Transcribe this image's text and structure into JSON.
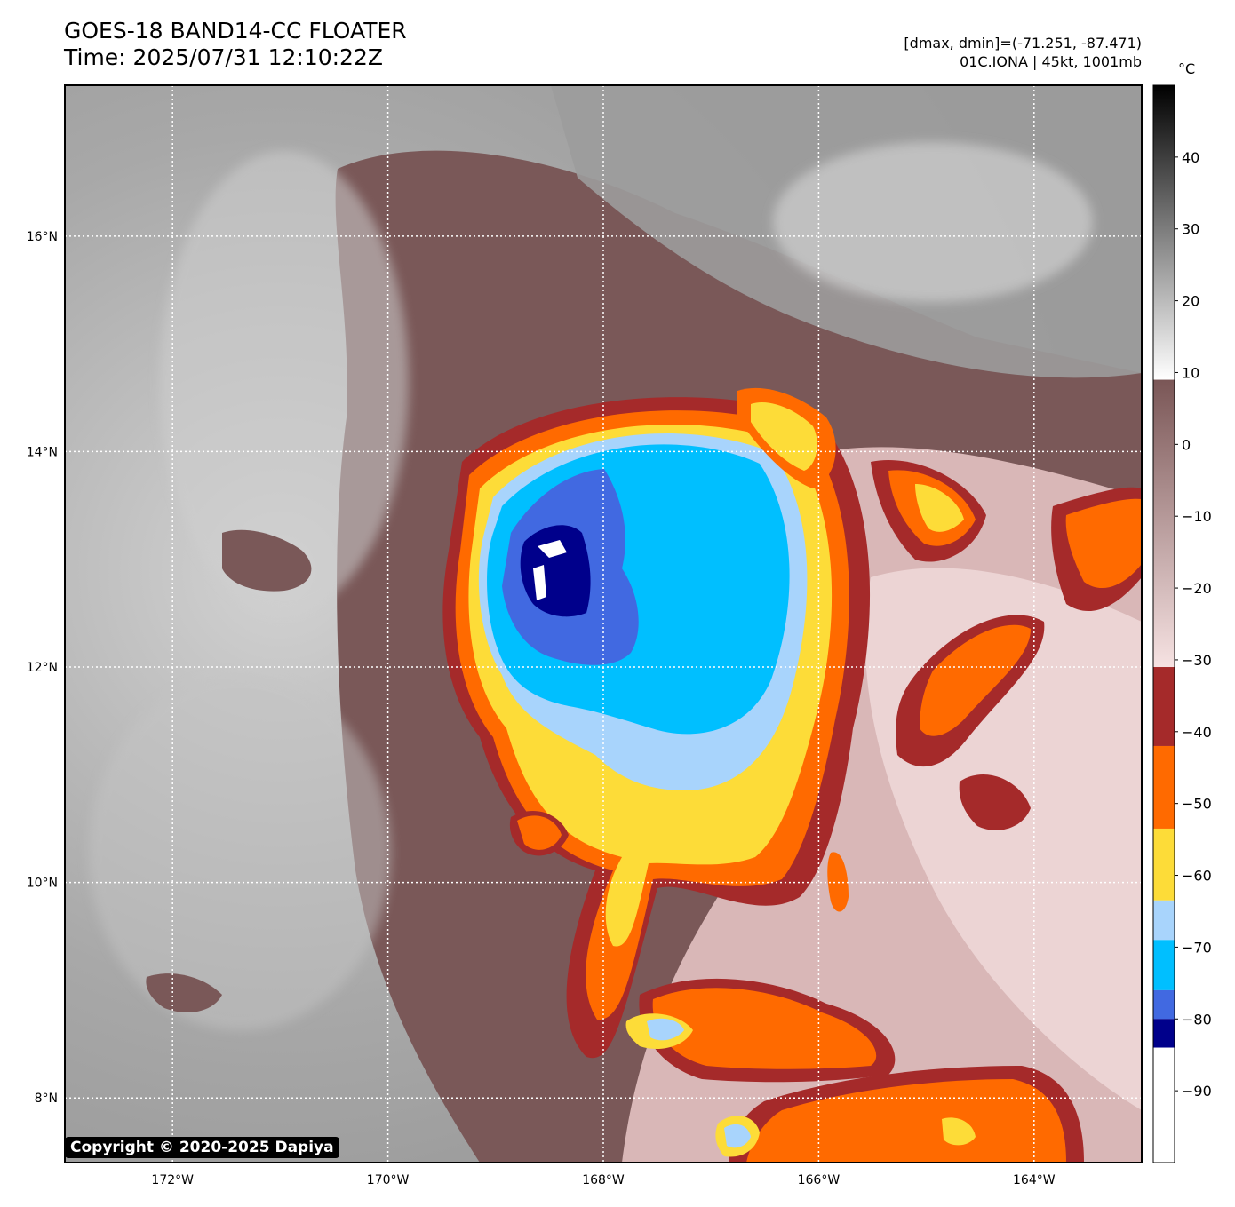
{
  "header": {
    "title_line1": "GOES-18 BAND14-CC FLOATER",
    "title_line2": "Time: 2025/07/31 12:10:22Z",
    "range_text": "[dmax, dmin]=(-71.251, -87.471)",
    "storm_text": "01C.IONA | 45kt, 1001mb"
  },
  "map": {
    "lat_labels": [
      "16°N",
      "14°N",
      "12°N",
      "10°N",
      "8°N"
    ],
    "lon_labels": [
      "172°W",
      "170°W",
      "168°W",
      "166°W",
      "164°W"
    ],
    "lat_values": [
      16,
      14,
      12,
      10,
      8
    ],
    "lon_values": [
      -172,
      -170,
      -168,
      -166,
      -164
    ],
    "lat_range": [
      7.4,
      17.4
    ],
    "lon_range": [
      -173.0,
      -163.0
    ],
    "storm_center": {
      "lat": 12.3,
      "lon": -167.9
    },
    "copyright": "Copyright © 2020-2025 Dapiya"
  },
  "colorbar": {
    "unit": "°C",
    "tick_labels": [
      "40",
      "30",
      "20",
      "10",
      "0",
      "−10",
      "−20",
      "−30",
      "−40",
      "−50",
      "−60",
      "−70",
      "−80",
      "−90"
    ],
    "tick_values": [
      40,
      30,
      20,
      10,
      0,
      -10,
      -20,
      -30,
      -40,
      -50,
      -60,
      -70,
      -80,
      -90
    ],
    "range": [
      -100,
      50
    ],
    "bands": [
      {
        "from": 9,
        "to": 50,
        "colors": [
          "#ffffff",
          "#000000"
        ]
      },
      {
        "from": -31,
        "to": 9,
        "colors": [
          "#f6e2e2",
          "#7a5656"
        ]
      },
      {
        "from": -42,
        "to": -31,
        "colors": [
          "#a52a2a"
        ]
      },
      {
        "from": -53.5,
        "to": -42,
        "colors": [
          "#ff6a00"
        ]
      },
      {
        "from": -63.5,
        "to": -53.5,
        "colors": [
          "#fddc38"
        ]
      },
      {
        "from": -69,
        "to": -63.5,
        "colors": [
          "#a8d4fc"
        ]
      },
      {
        "from": -76,
        "to": -69,
        "colors": [
          "#00bfff"
        ]
      },
      {
        "from": -80,
        "to": -76,
        "colors": [
          "#4169e1"
        ]
      },
      {
        "from": -84,
        "to": -80,
        "colors": [
          "#00008b"
        ]
      },
      {
        "from": -100,
        "to": -84,
        "colors": [
          "#ffffff"
        ]
      }
    ]
  }
}
